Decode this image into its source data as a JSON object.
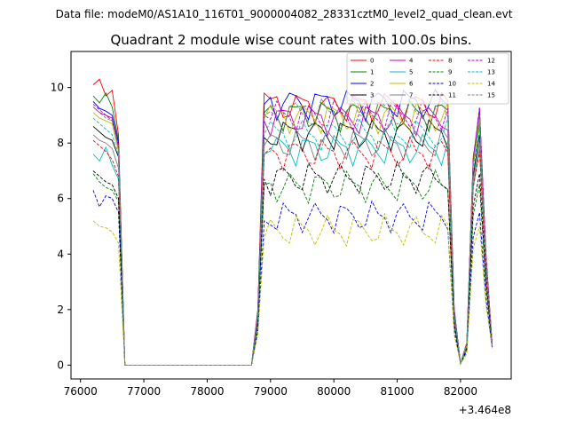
{
  "figure": {
    "suptitle": "Data file: modeM0/AS1A10_116T01_9000004082_28331cztM0_level2_quad_clean.evt",
    "offset_label": "+3.464e8"
  },
  "chart_data": {
    "type": "line",
    "title": "Quadrant 2 module wise count rates with 100.0s bins.",
    "xlabel": "",
    "ylabel": "",
    "x_offset": 346400000,
    "xlim": [
      75850,
      82800
    ],
    "ylim": [
      -0.5,
      11.3
    ],
    "xticks": [
      76000,
      77000,
      78000,
      79000,
      80000,
      81000,
      82000
    ],
    "xtick_labels": [
      "76000",
      "77000",
      "78000",
      "79000",
      "80000",
      "81000",
      "82000"
    ],
    "yticks": [
      0,
      2,
      4,
      6,
      8,
      10
    ],
    "ytick_labels": [
      "0",
      "2",
      "4",
      "6",
      "8",
      "10"
    ],
    "legend_position": "top-right",
    "x_segments": {
      "start": 76200,
      "step": 100,
      "low_start": 76700,
      "low_end": 78700,
      "high_start": 78900,
      "high_end": 81800,
      "drop": [
        81900,
        82000,
        82100,
        82200,
        82300,
        82400,
        82500
      ]
    },
    "series": [
      {
        "name": "0",
        "color": "#ff0000",
        "style": "solid",
        "base": 9.35,
        "pre": [
          10.1,
          10.3,
          9.7,
          9.9,
          8.3
        ],
        "post_ramp": [
          2.0,
          9.8
        ],
        "drop": [
          2.0,
          0.05,
          0.8,
          7.5,
          9.0,
          4.0,
          0.7
        ]
      },
      {
        "name": "1",
        "color": "#008000",
        "style": "solid",
        "base": 9.05,
        "pre": [
          9.7,
          9.45,
          9.8,
          9.3,
          8.1
        ],
        "post_ramp": [
          1.9,
          9.1
        ],
        "drop": [
          1.9,
          0.05,
          0.8,
          7.2,
          8.7,
          3.8,
          0.7
        ]
      },
      {
        "name": "2",
        "color": "#0000ff",
        "style": "solid",
        "base": 9.45,
        "pre": [
          9.5,
          9.25,
          9.15,
          9.0,
          8.0
        ],
        "post_ramp": [
          1.9,
          9.4
        ],
        "drop": [
          2.0,
          0.05,
          0.8,
          7.4,
          9.2,
          4.0,
          0.7
        ]
      },
      {
        "name": "3",
        "color": "#000000",
        "style": "solid",
        "base": 8.35,
        "pre": [
          8.6,
          8.4,
          8.2,
          8.1,
          7.5
        ],
        "post_ramp": [
          1.7,
          8.2
        ],
        "drop": [
          1.7,
          0.05,
          0.7,
          6.8,
          8.3,
          3.5,
          0.7
        ]
      },
      {
        "name": "4",
        "color": "#bf00bf",
        "style": "solid",
        "base": 8.9,
        "pre": [
          9.3,
          9.1,
          9.0,
          8.9,
          7.8
        ],
        "post_ramp": [
          1.8,
          8.8
        ],
        "drop": [
          1.9,
          0.05,
          0.8,
          7.3,
          9.1,
          3.9,
          0.7
        ]
      },
      {
        "name": "5",
        "color": "#00bfbf",
        "style": "solid",
        "base": 7.8,
        "pre": [
          7.6,
          7.35,
          7.85,
          7.2,
          6.7
        ],
        "post_ramp": [
          1.6,
          7.6
        ],
        "drop": [
          1.6,
          0.05,
          0.7,
          6.4,
          7.8,
          3.4,
          0.7
        ]
      },
      {
        "name": "6",
        "color": "#bfbf00",
        "style": "solid",
        "base": 8.95,
        "pre": [
          9.1,
          8.9,
          8.8,
          8.7,
          7.7
        ],
        "post_ramp": [
          1.8,
          8.9
        ],
        "drop": [
          1.8,
          0.05,
          0.8,
          7.2,
          8.9,
          3.8,
          0.7
        ]
      },
      {
        "name": "7",
        "color": "#808080",
        "style": "solid",
        "base": 8.0,
        "pre": [
          8.3,
          8.1,
          8.0,
          7.8,
          7.1
        ],
        "post_ramp": [
          1.6,
          7.9
        ],
        "drop": [
          1.7,
          0.05,
          0.7,
          6.6,
          8.0,
          3.5,
          0.7
        ]
      },
      {
        "name": "8",
        "color": "#ff0000",
        "style": "dashed",
        "base": 7.65,
        "pre": [
          8.1,
          7.9,
          7.7,
          7.4,
          6.8
        ],
        "post_ramp": [
          1.6,
          7.6
        ],
        "drop": [
          1.6,
          0.05,
          0.7,
          6.4,
          7.7,
          3.3,
          0.7
        ]
      },
      {
        "name": "9",
        "color": "#008000",
        "style": "dashed",
        "base": 6.45,
        "pre": [
          6.9,
          6.6,
          6.4,
          6.3,
          5.9
        ],
        "post_ramp": [
          1.4,
          6.5
        ],
        "drop": [
          1.4,
          0.05,
          0.6,
          5.4,
          6.5,
          2.8,
          0.7
        ]
      },
      {
        "name": "10",
        "color": "#0000ff",
        "style": "dashed",
        "base": 5.35,
        "pre": [
          6.3,
          5.7,
          6.1,
          6.0,
          5.5
        ],
        "post_ramp": [
          1.2,
          5.2
        ],
        "drop": [
          1.2,
          0.05,
          0.5,
          4.6,
          5.5,
          2.4,
          0.6
        ]
      },
      {
        "name": "11",
        "color": "#000000",
        "style": "dashed",
        "base": 6.75,
        "pre": [
          7.0,
          6.8,
          6.6,
          6.5,
          6.0
        ],
        "post_ramp": [
          1.5,
          6.7
        ],
        "drop": [
          1.5,
          0.05,
          0.6,
          5.7,
          6.9,
          3.0,
          0.7
        ]
      },
      {
        "name": "12",
        "color": "#bf00bf",
        "style": "dashed",
        "base": 9.0,
        "pre": [
          9.4,
          9.2,
          9.0,
          8.8,
          7.9
        ],
        "post_ramp": [
          1.9,
          9.0
        ],
        "drop": [
          1.9,
          0.05,
          0.8,
          7.4,
          9.3,
          4.0,
          0.7
        ]
      },
      {
        "name": "13",
        "color": "#00bfbf",
        "style": "dashed",
        "base": 8.3,
        "pre": [
          8.9,
          8.7,
          8.5,
          8.3,
          7.6
        ],
        "post_ramp": [
          1.7,
          8.3
        ],
        "drop": [
          1.8,
          0.05,
          0.7,
          7.0,
          8.6,
          3.7,
          0.7
        ]
      },
      {
        "name": "14",
        "color": "#bfbf00",
        "style": "dashed",
        "base": 4.85,
        "pre": [
          5.2,
          5.0,
          4.95,
          4.8,
          4.4
        ],
        "post_ramp": [
          1.1,
          4.6
        ],
        "drop": [
          1.1,
          0.05,
          0.4,
          4.2,
          5.0,
          2.2,
          0.6
        ]
      },
      {
        "name": "15",
        "color": "#808080",
        "style": "dashed",
        "base": 9.05,
        "pre": [
          9.3,
          9.1,
          8.9,
          8.8,
          7.9
        ],
        "post_ramp": [
          1.8,
          9.0
        ],
        "drop": [
          1.9,
          0.05,
          0.8,
          7.3,
          9.0,
          3.9,
          0.7
        ]
      }
    ]
  }
}
